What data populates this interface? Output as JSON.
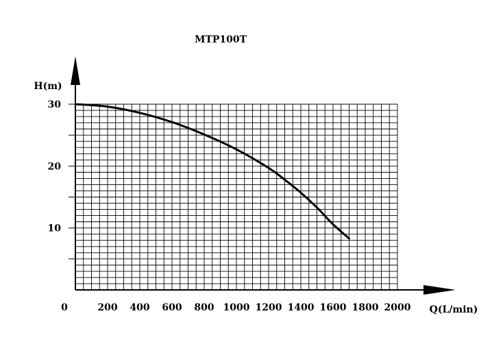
{
  "chart_data": {
    "type": "line",
    "title": "MTP100T",
    "xlabel": "Q(L/min)",
    "ylabel": "H(m)",
    "xlim": [
      0,
      2000
    ],
    "ylim": [
      0,
      30
    ],
    "grid": true,
    "x_ticks": [
      "0",
      "200",
      "400",
      "600",
      "800",
      "1000",
      "1200",
      "1400",
      "1600",
      "1800",
      "2000"
    ],
    "y_ticks": [
      "10",
      "20",
      "30"
    ],
    "series": [
      {
        "x": [
          0,
          200,
          400,
          600,
          800,
          1000,
          1200,
          1300,
          1400,
          1500,
          1600,
          1700
        ],
        "y": [
          30,
          29.6,
          28.6,
          27.1,
          25.1,
          22.7,
          19.7,
          17.8,
          15.7,
          13.3,
          10.6,
          8.3
        ]
      }
    ]
  }
}
